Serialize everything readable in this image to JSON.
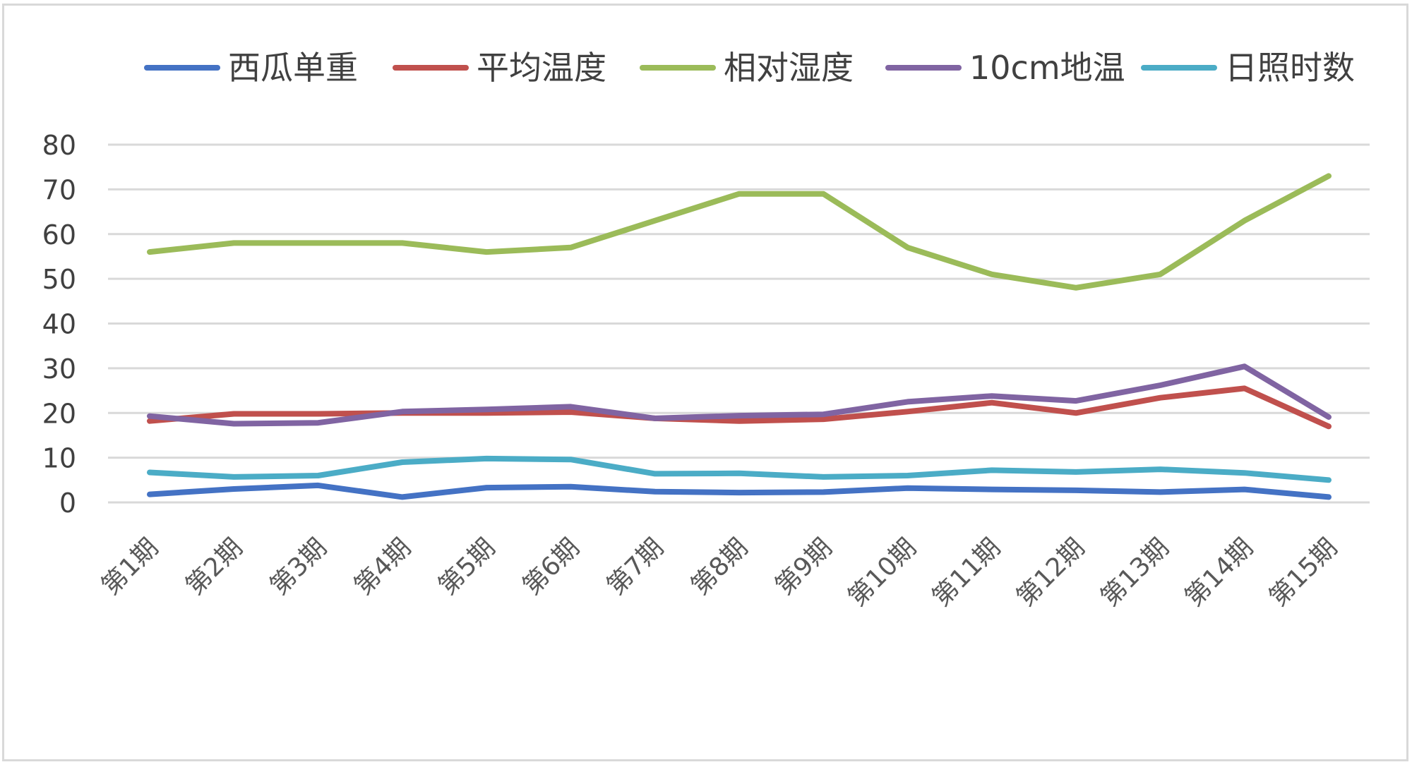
{
  "chart_data": {
    "type": "line",
    "title": "",
    "xlabel": "",
    "ylabel": "",
    "ylim": [
      0,
      80
    ],
    "yticks": [
      "0",
      "10",
      "20",
      "30",
      "40",
      "50",
      "60",
      "70",
      "80"
    ],
    "grid": true,
    "legend_position": "top",
    "categories": [
      "第1期",
      "第2期",
      "第3期",
      "第4期",
      "第5期",
      "第6期",
      "第7期",
      "第8期",
      "第9期",
      "第10期",
      "第11期",
      "第12期",
      "第13期",
      "第14期",
      "第15期"
    ],
    "series": [
      {
        "name": "西瓜单重",
        "color": "#4472C4",
        "values": [
          1.8,
          3.0,
          3.8,
          1.2,
          3.3,
          3.5,
          2.4,
          2.2,
          2.3,
          3.2,
          2.9,
          2.7,
          2.3,
          2.9,
          1.2
        ]
      },
      {
        "name": "平均温度",
        "color": "#C0504D",
        "values": [
          18.2,
          19.8,
          19.8,
          20.0,
          20.0,
          20.2,
          18.8,
          18.2,
          18.6,
          20.3,
          22.3,
          20.0,
          23.4,
          25.5,
          17.0
        ]
      },
      {
        "name": "相对湿度",
        "color": "#9BBB59",
        "values": [
          56,
          58,
          58,
          58,
          56,
          57,
          63,
          69,
          69,
          57,
          51,
          48,
          51,
          63,
          73
        ]
      },
      {
        "name": "10cm地温",
        "color": "#8064A2",
        "values": [
          19.3,
          17.6,
          17.8,
          20.3,
          20.8,
          21.4,
          18.8,
          19.4,
          19.7,
          22.5,
          23.8,
          22.7,
          26.2,
          30.4,
          19.1
        ]
      },
      {
        "name": "日照时数",
        "color": "#4BACC6",
        "values": [
          6.7,
          5.7,
          6.0,
          9.0,
          9.8,
          9.6,
          6.4,
          6.5,
          5.7,
          6.0,
          7.2,
          6.8,
          7.4,
          6.6,
          5.0
        ]
      }
    ]
  }
}
